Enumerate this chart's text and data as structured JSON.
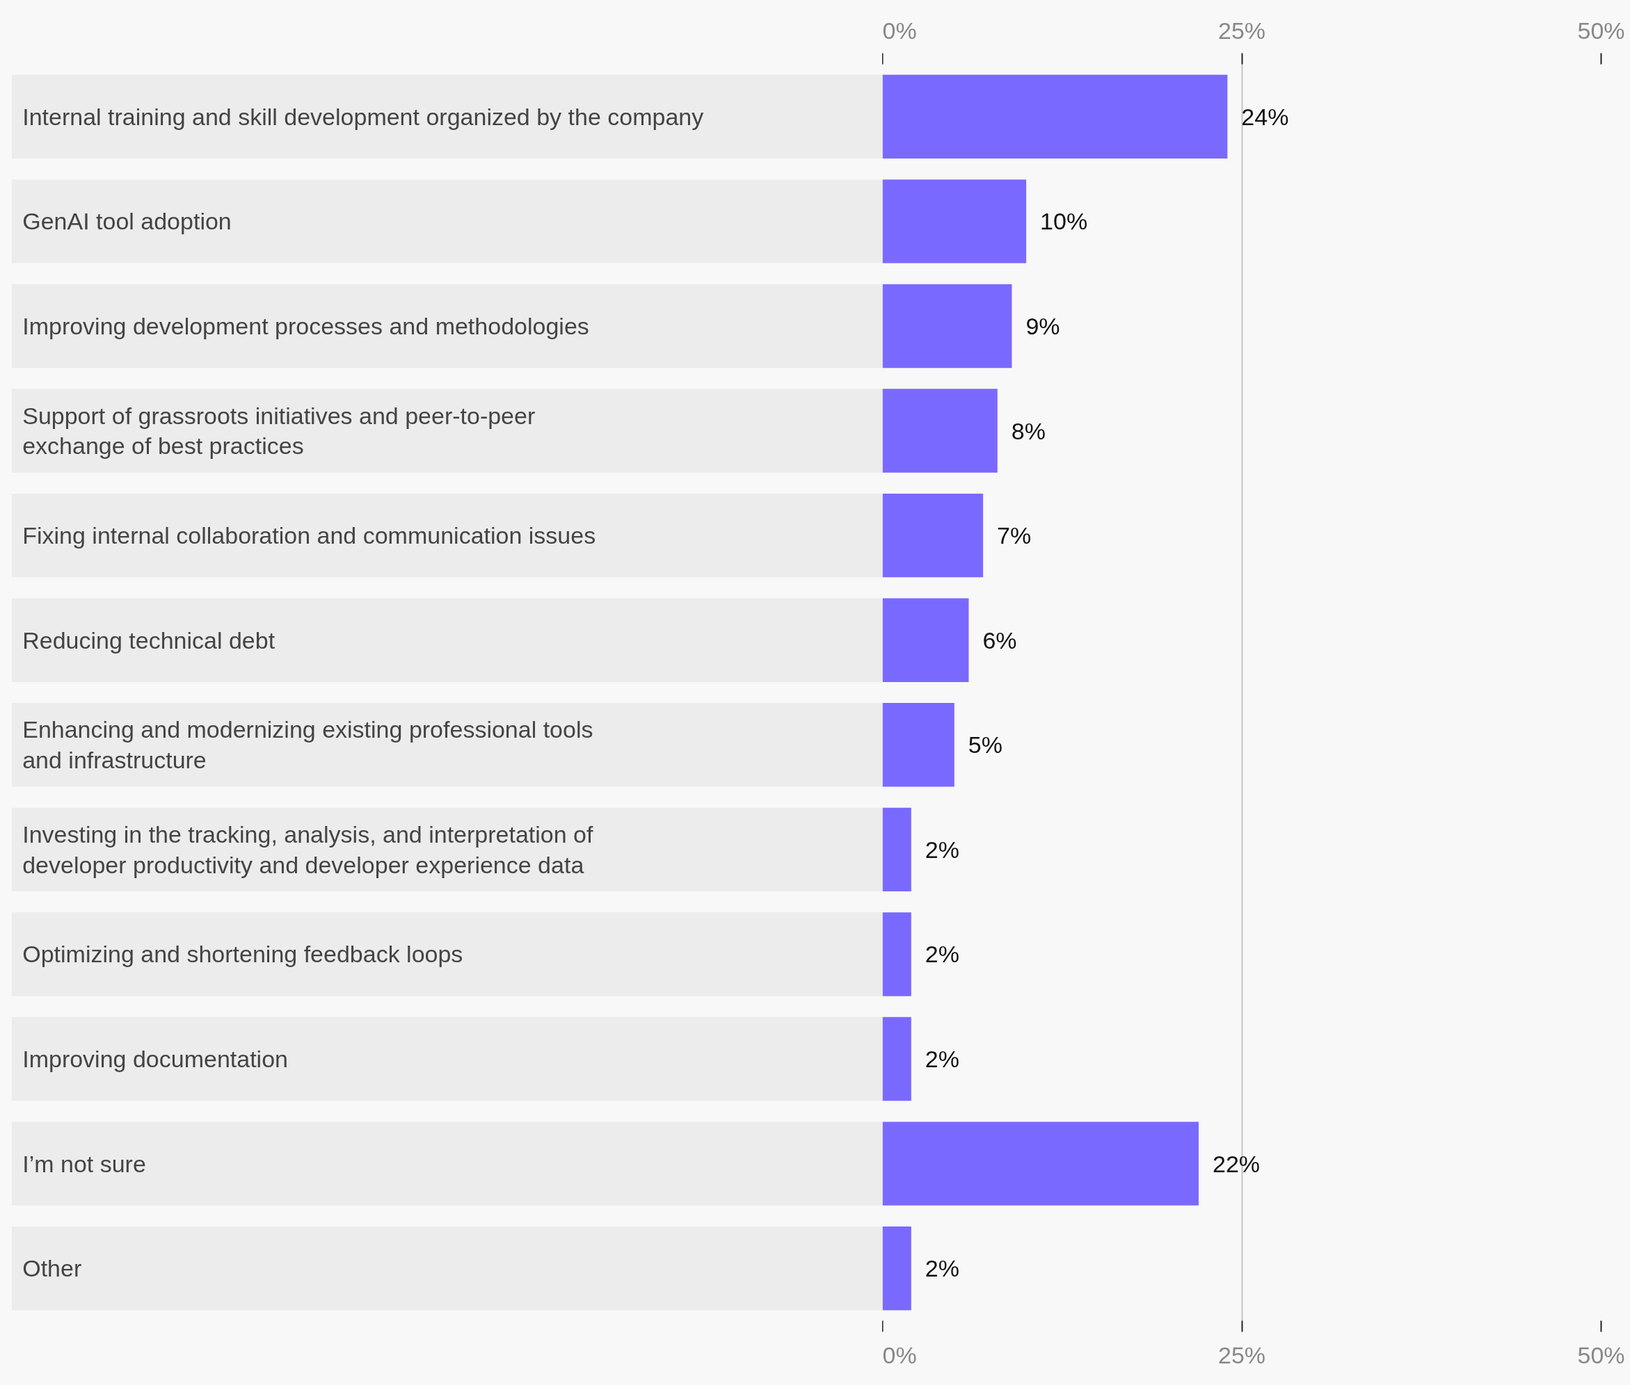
{
  "chart_data": {
    "type": "bar",
    "orientation": "horizontal",
    "categories": [
      "Internal training and skill development organized by the company",
      "GenAI tool adoption",
      "Improving development processes and methodologies",
      "Support of grassroots initiatives and peer-to-peer\nexchange of best practices",
      "Fixing internal collaboration and communication issues",
      "Reducing technical debt",
      "Enhancing and modernizing existing professional tools\nand infrastructure",
      "Investing in the tracking, analysis, and interpretation of\ndeveloper productivity and developer experience data",
      "Optimizing and shortening feedback loops",
      "Improving documentation",
      "I’m not sure",
      "Other"
    ],
    "values": [
      24,
      10,
      9,
      8,
      7,
      6,
      5,
      2,
      2,
      2,
      22,
      2
    ],
    "value_labels": [
      "24%",
      "10%",
      "9%",
      "8%",
      "7%",
      "6%",
      "5%",
      "2%",
      "2%",
      "2%",
      "22%",
      "2%"
    ],
    "color": "#7a69ff",
    "xlim": [
      0,
      50
    ],
    "xticks": [
      {
        "value": 0,
        "label": "0%"
      },
      {
        "value": 25,
        "label": "25%"
      },
      {
        "value": 50,
        "label": "50%"
      }
    ],
    "x2lim": [
      0,
      50
    ],
    "x2ticks": [
      {
        "value": 0,
        "label": "0%"
      },
      {
        "value": 25,
        "label": "25%"
      },
      {
        "value": 50,
        "label": "50%"
      }
    ],
    "grid": "x"
  }
}
